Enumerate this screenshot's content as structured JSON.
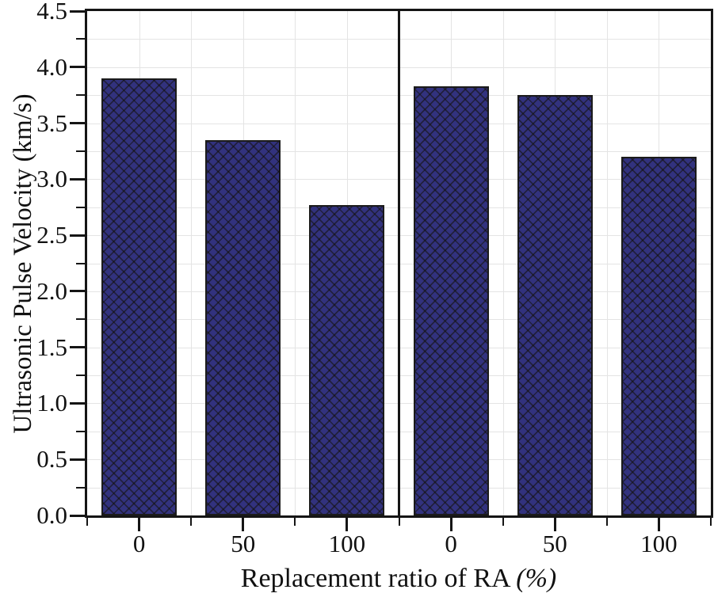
{
  "chart_data": {
    "type": "bar",
    "title": "",
    "ylabel": "Ultrasonic Pulse Velocity (km/s)",
    "xlabel": "Replacement ratio of RA ",
    "xlabel_suffix": "(%)",
    "ylim": [
      0,
      4.5
    ],
    "ytick_major_step": 0.5,
    "ytick_minor_step": 0.25,
    "yticks": [
      "0.0",
      "0.5",
      "1.0",
      "1.5",
      "2.0",
      "2.5",
      "3.0",
      "3.5",
      "4.0",
      "4.5"
    ],
    "grid": "major-and-minor-both-axes",
    "legend": "none",
    "categories": [
      "0",
      "50",
      "100"
    ],
    "panels": [
      {
        "values": [
          3.9,
          3.35,
          2.77
        ]
      },
      {
        "values": [
          3.83,
          3.75,
          3.2
        ]
      }
    ],
    "bar_color": "#32327E",
    "bar_hatch": "diagonal-crosshatch",
    "bar_edge_color": "#1b1b1b",
    "grid_color": "#e4e4e4",
    "axis_color": "#151515",
    "text_color": "#111111",
    "background_color": "#ffffff"
  }
}
